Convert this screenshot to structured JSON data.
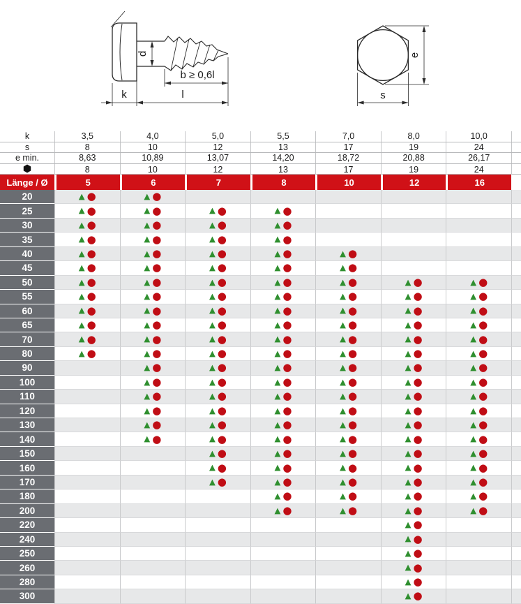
{
  "drawings": {
    "side_view": {
      "shank_diameter_label": "d",
      "thread_length_label": "b ≥ 0,6l",
      "head_height_label": "k",
      "total_length_label": "l"
    },
    "head_view": {
      "across_corners_label": "e",
      "across_flats_label": "s"
    }
  },
  "spec_rows": [
    {
      "key": "k",
      "label": "k",
      "icon": null,
      "values": [
        "3,5",
        "4,0",
        "5,0",
        "5,5",
        "7,0",
        "8,0",
        "10,0"
      ]
    },
    {
      "key": "s",
      "label": "s",
      "icon": null,
      "values": [
        "8",
        "10",
        "12",
        "13",
        "17",
        "19",
        "24"
      ]
    },
    {
      "key": "e-min",
      "label": "e min.",
      "icon": null,
      "values": [
        "8,63",
        "10,89",
        "13,07",
        "14,20",
        "18,72",
        "20,88",
        "26,17"
      ]
    },
    {
      "key": "wrench",
      "label": "",
      "icon": "hexagon-icon",
      "values": [
        "8",
        "10",
        "12",
        "13",
        "17",
        "19",
        "24"
      ]
    }
  ],
  "diameter_header": {
    "corner_label": "Länge / Ø",
    "values": [
      "5",
      "6",
      "7",
      "8",
      "10",
      "12",
      "16"
    ]
  },
  "availability": {
    "triangle_char": "▲",
    "circle_char": "●",
    "rows": [
      {
        "length": "20",
        "cells": [
          1,
          1,
          0,
          0,
          0,
          0,
          0
        ]
      },
      {
        "length": "25",
        "cells": [
          1,
          1,
          1,
          1,
          0,
          0,
          0
        ]
      },
      {
        "length": "30",
        "cells": [
          1,
          1,
          1,
          1,
          0,
          0,
          0
        ]
      },
      {
        "length": "35",
        "cells": [
          1,
          1,
          1,
          1,
          0,
          0,
          0
        ]
      },
      {
        "length": "40",
        "cells": [
          1,
          1,
          1,
          1,
          1,
          0,
          0
        ]
      },
      {
        "length": "45",
        "cells": [
          1,
          1,
          1,
          1,
          1,
          0,
          0
        ]
      },
      {
        "length": "50",
        "cells": [
          1,
          1,
          1,
          1,
          1,
          1,
          1
        ]
      },
      {
        "length": "55",
        "cells": [
          1,
          1,
          1,
          1,
          1,
          1,
          1
        ]
      },
      {
        "length": "60",
        "cells": [
          1,
          1,
          1,
          1,
          1,
          1,
          1
        ]
      },
      {
        "length": "65",
        "cells": [
          1,
          1,
          1,
          1,
          1,
          1,
          1
        ]
      },
      {
        "length": "70",
        "cells": [
          1,
          1,
          1,
          1,
          1,
          1,
          1
        ]
      },
      {
        "length": "80",
        "cells": [
          1,
          1,
          1,
          1,
          1,
          1,
          1
        ]
      },
      {
        "length": "90",
        "cells": [
          0,
          1,
          1,
          1,
          1,
          1,
          1
        ]
      },
      {
        "length": "100",
        "cells": [
          0,
          1,
          1,
          1,
          1,
          1,
          1
        ]
      },
      {
        "length": "110",
        "cells": [
          0,
          1,
          1,
          1,
          1,
          1,
          1
        ]
      },
      {
        "length": "120",
        "cells": [
          0,
          1,
          1,
          1,
          1,
          1,
          1
        ]
      },
      {
        "length": "130",
        "cells": [
          0,
          1,
          1,
          1,
          1,
          1,
          1
        ]
      },
      {
        "length": "140",
        "cells": [
          0,
          1,
          1,
          1,
          1,
          1,
          1
        ]
      },
      {
        "length": "150",
        "cells": [
          0,
          0,
          1,
          1,
          1,
          1,
          1
        ]
      },
      {
        "length": "160",
        "cells": [
          0,
          0,
          1,
          1,
          1,
          1,
          1
        ]
      },
      {
        "length": "170",
        "cells": [
          0,
          0,
          1,
          1,
          1,
          1,
          1
        ]
      },
      {
        "length": "180",
        "cells": [
          0,
          0,
          0,
          1,
          1,
          1,
          1
        ]
      },
      {
        "length": "200",
        "cells": [
          0,
          0,
          0,
          1,
          1,
          1,
          1
        ]
      },
      {
        "length": "220",
        "cells": [
          0,
          0,
          0,
          0,
          0,
          1,
          0
        ]
      },
      {
        "length": "240",
        "cells": [
          0,
          0,
          0,
          0,
          0,
          1,
          0
        ]
      },
      {
        "length": "250",
        "cells": [
          0,
          0,
          0,
          0,
          0,
          1,
          0
        ]
      },
      {
        "length": "260",
        "cells": [
          0,
          0,
          0,
          0,
          0,
          1,
          0
        ]
      },
      {
        "length": "280",
        "cells": [
          0,
          0,
          0,
          0,
          0,
          1,
          0
        ]
      },
      {
        "length": "300",
        "cells": [
          0,
          0,
          0,
          0,
          0,
          1,
          0
        ]
      }
    ]
  },
  "colors": {
    "header_red": "#d01117",
    "row_label_gray": "#6a6d72",
    "zebra_gray": "#e7e8e9",
    "triangle_green": "#2f8f2f",
    "circle_red": "#c00d15",
    "line_dark": "#2b2b2b"
  }
}
